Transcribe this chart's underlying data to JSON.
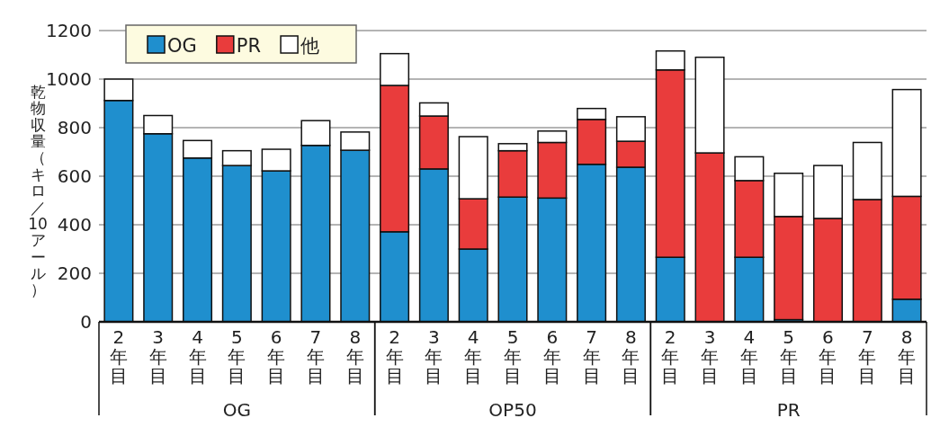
{
  "chart_data": {
    "type": "bar",
    "stacked": true,
    "ylabel": "乾物収量（キロ／10アール）",
    "categories": [
      "2年目",
      "3年目",
      "4年目",
      "5年目",
      "6年目",
      "7年目",
      "8年目",
      "2年目",
      "3年目",
      "4年目",
      "5年目",
      "6年目",
      "7年目",
      "8年目",
      "2年目",
      "3年目",
      "4年目",
      "5年目",
      "6年目",
      "7年目",
      "8年目"
    ],
    "annotations": [
      "OG",
      "OP50",
      "PR"
    ],
    "series": [
      {
        "name": "OG",
        "color": "#1f8fce",
        "values": [
          912,
          775,
          675,
          644,
          622,
          727,
          707,
          371,
          630,
          300,
          514,
          510,
          649,
          637,
          266,
          0,
          266,
          9,
          0,
          0,
          93
        ]
      },
      {
        "name": "PR",
        "color": "#e93c3c",
        "values": [
          0,
          0,
          0,
          0,
          0,
          0,
          0,
          603,
          218,
          207,
          191,
          229,
          185,
          107,
          772,
          696,
          316,
          425,
          426,
          504,
          424
        ]
      },
      {
        "name": "他",
        "color": "#ffffff",
        "values": [
          88,
          75,
          72,
          61,
          89,
          102,
          75,
          131,
          54,
          256,
          29,
          47,
          45,
          101,
          78,
          394,
          98,
          178,
          218,
          235,
          440
        ]
      }
    ],
    "ylim": [
      0,
      1200
    ],
    "yticks": [
      0,
      200,
      400,
      600,
      800,
      1000,
      1200
    ],
    "grid": "y",
    "legend": "top left"
  }
}
